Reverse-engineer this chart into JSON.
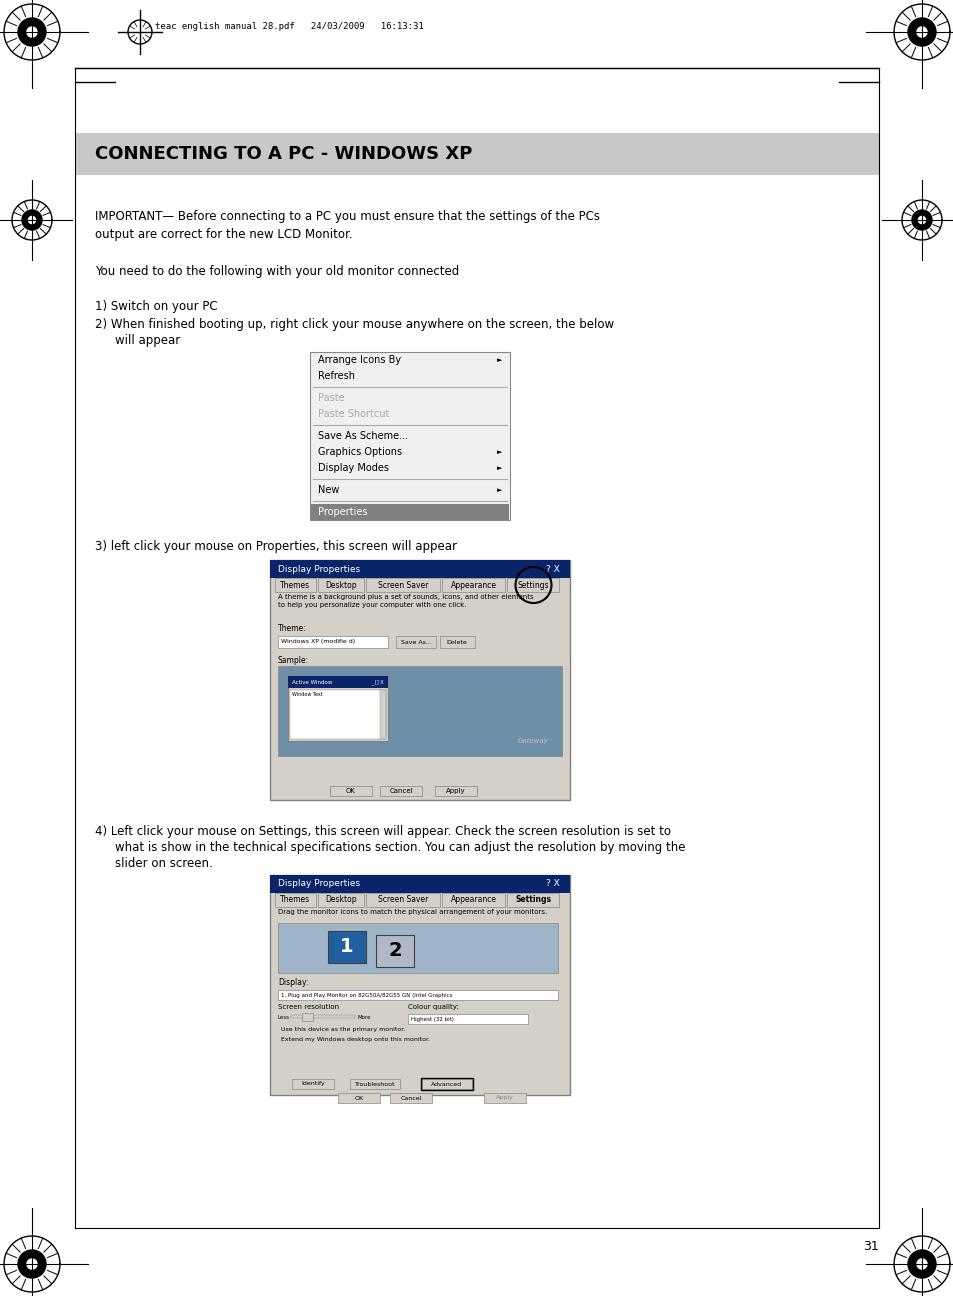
{
  "bg_color": "#ffffff",
  "page_bg": "#ffffff",
  "header_text": "teac english manual 28.pdf   24/03/2009   16:13:31",
  "title_bar_color": "#c8c8c8",
  "title_text": "CONNECTING TO A PC - WINDOWS XP",
  "title_fontsize": 13,
  "body_fontsize": 8.5,
  "page_number": "31",
  "para1": "IMPORTANT— Before connecting to a PC you must ensure that the settings of the PCs\noutput are correct for the new LCD Monitor.",
  "para2": "You need to do the following with your old monitor connected",
  "para3": "1) Switch on your PC\n2) When finished booting up, right click your mouse anywhere on the screen, the below\n    will appear",
  "para4": "3) left click your mouse on Properties, this screen will appear",
  "para5": "4) Left click your mouse on Settings, this screen will appear. Check the screen resolution is set to\n    what is show in the technical specifications section. You can adjust the resolution by moving the\n    slider on screen.",
  "menu_items": [
    "Arrange Icons By",
    "Refresh",
    "",
    "Paste",
    "Paste Shortcut",
    "",
    "Save As Scheme...",
    "Graphics Options",
    "Display Modes",
    "",
    "New",
    "",
    "Properties"
  ],
  "menu_items_arrow": [
    true,
    false,
    false,
    false,
    false,
    false,
    false,
    true,
    true,
    false,
    true,
    false,
    false
  ],
  "menu_items_grayed": [
    false,
    false,
    false,
    true,
    true,
    false,
    false,
    false,
    false,
    false,
    false,
    false,
    false
  ],
  "menu_properties_highlighted": true
}
